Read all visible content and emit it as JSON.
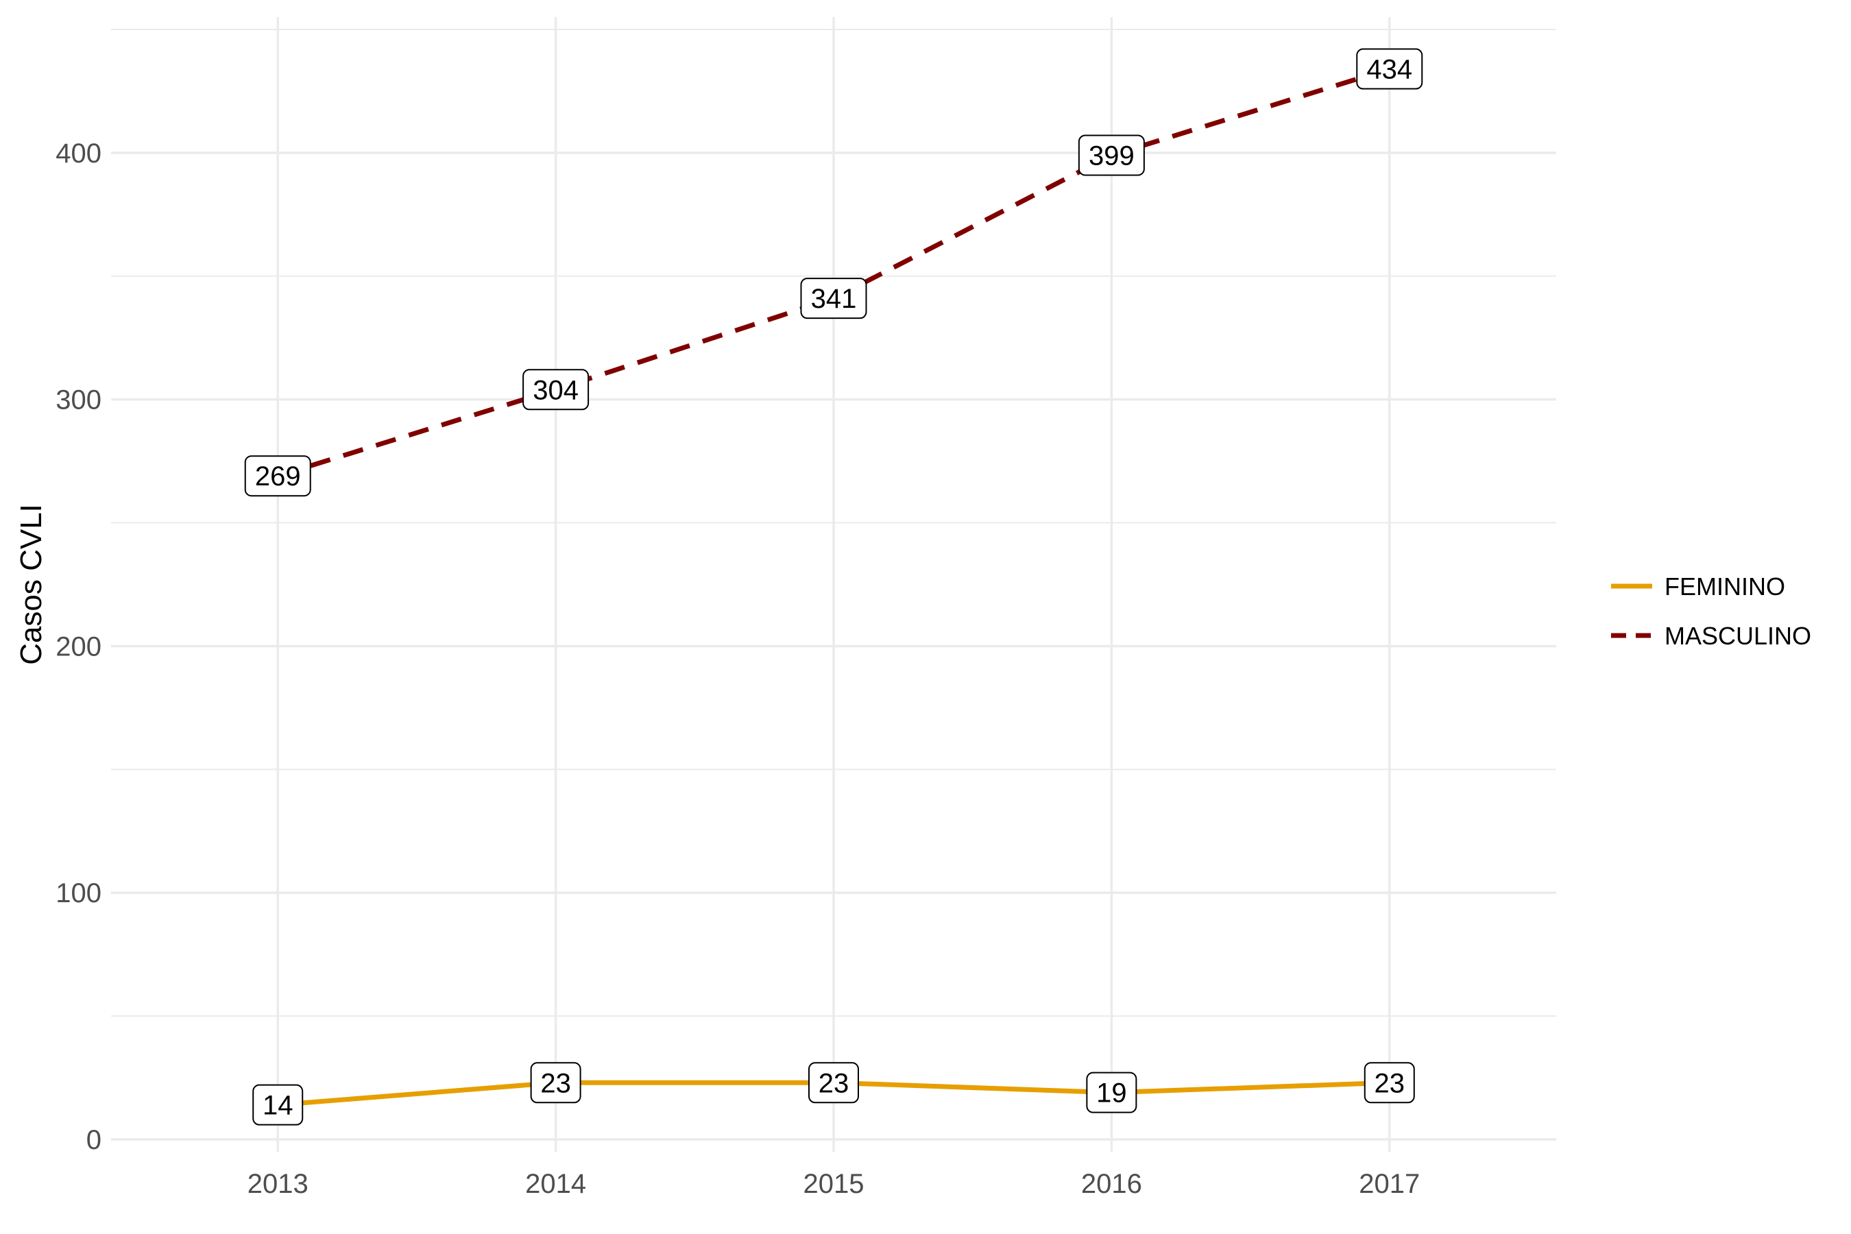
{
  "chart_data": {
    "type": "line",
    "x": [
      2013,
      2014,
      2015,
      2016,
      2017
    ],
    "series": [
      {
        "name": "FEMININO",
        "values": [
          14,
          23,
          23,
          19,
          23
        ],
        "color": "#E69F00",
        "dash": "solid"
      },
      {
        "name": "MASCULINO",
        "values": [
          269,
          304,
          341,
          399,
          434
        ],
        "color": "#800000",
        "dash": "dashed"
      }
    ],
    "ylabel": "Casos CVLI",
    "xlabel": "",
    "title": "",
    "xlim": [
      2012.4,
      2017.6
    ],
    "ylim": [
      -5,
      455
    ],
    "yticks": [
      0,
      100,
      200,
      300,
      400
    ],
    "ytick_labels": [
      "0",
      "100",
      "200",
      "300",
      "400"
    ],
    "xticks": [
      2013,
      2014,
      2015,
      2016,
      2017
    ],
    "xtick_labels": [
      "2013",
      "2014",
      "2015",
      "2016",
      "2017"
    ],
    "data_labels": true,
    "grid": true,
    "legend_position": "right",
    "gridline_color": "#EBEBEB"
  }
}
